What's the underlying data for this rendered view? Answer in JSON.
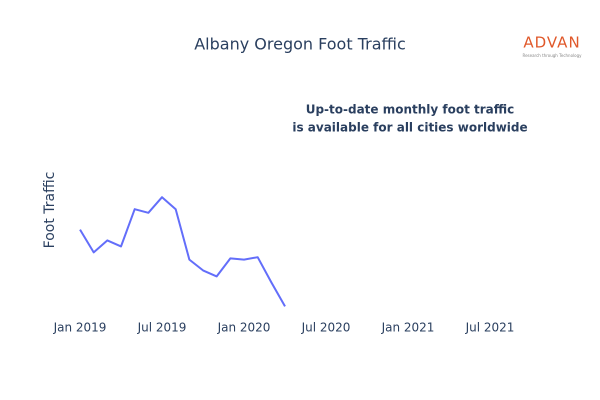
{
  "chart_data": {
    "type": "line",
    "title": "Albany Oregon Foot Traffic",
    "y_label": "Foot Traffic",
    "annotation": [
      "Up-to-date monthly foot traffic",
      "is available for all cities worldwide"
    ],
    "logo": {
      "name": "ADVAN",
      "tagline": "Research through Technology"
    },
    "x": [
      "2019-01",
      "2019-02",
      "2019-03",
      "2019-04",
      "2019-05",
      "2019-06",
      "2019-07",
      "2019-08",
      "2019-09",
      "2019-10",
      "2019-11",
      "2019-12",
      "2020-01",
      "2020-02",
      "2020-03",
      "2020-04"
    ],
    "series": [
      {
        "name": "Foot Traffic",
        "color": "#636efa",
        "values": [
          67,
          48,
          58,
          53,
          84,
          81,
          94,
          84,
          42,
          33,
          28,
          43,
          42,
          44,
          23,
          3
        ]
      }
    ],
    "xlim": [
      "2018-11",
      "2021-10"
    ],
    "xticks": [
      {
        "value": "2019-01",
        "label": "Jan 2019"
      },
      {
        "value": "2019-07",
        "label": "Jul 2019"
      },
      {
        "value": "2020-01",
        "label": "Jan 2020"
      },
      {
        "value": "2020-07",
        "label": "Jul 2020"
      },
      {
        "value": "2021-01",
        "label": "Jan 2021"
      },
      {
        "value": "2021-07",
        "label": "Jul 2021"
      }
    ],
    "ylim": [
      0,
      100
    ],
    "yticks": [],
    "grid": false
  }
}
